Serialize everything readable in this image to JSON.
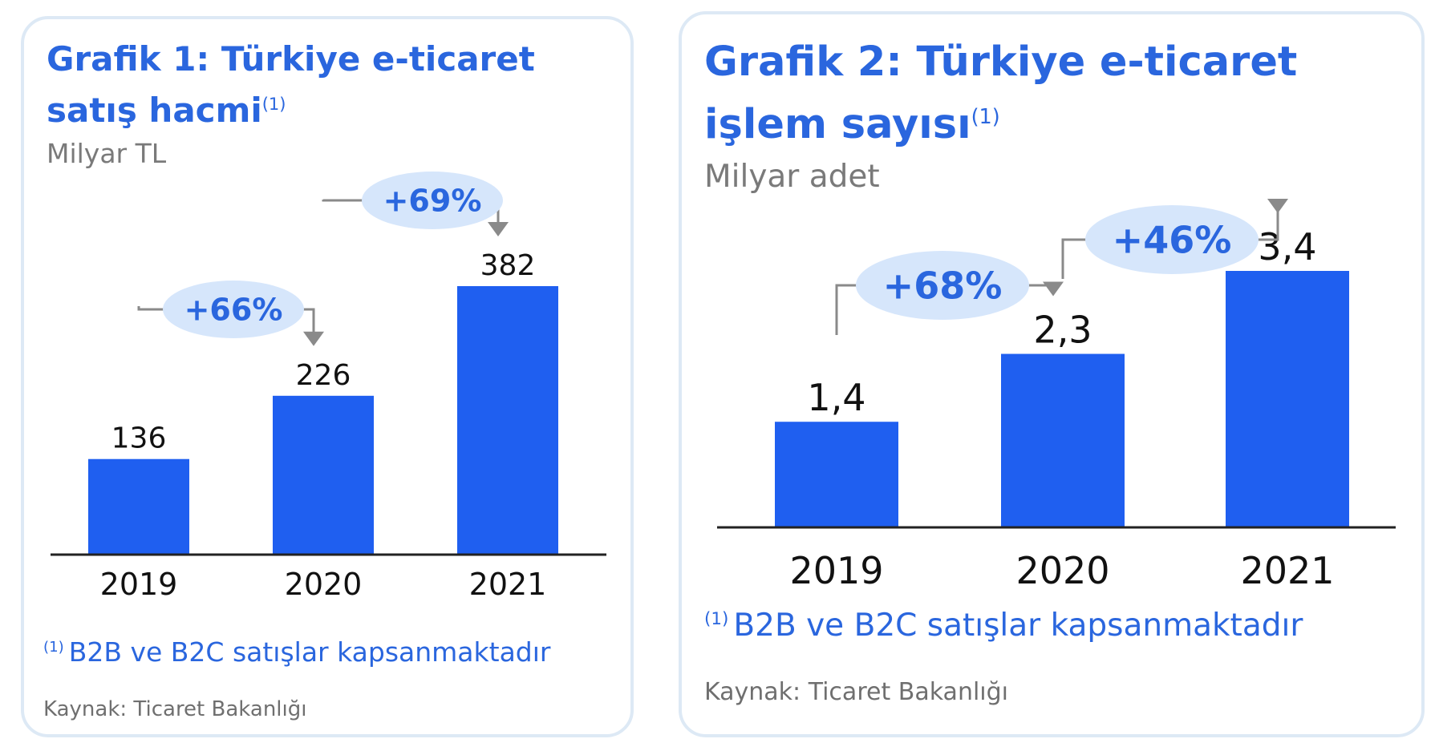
{
  "chart_data": [
    {
      "type": "bar",
      "title": "Grafik 1: Türkiye e-ticaret satış hacmi",
      "title_sup": "(1)",
      "unit": "Milyar TL",
      "categories": [
        "2019",
        "2020",
        "2021"
      ],
      "values": [
        136,
        226,
        382
      ],
      "value_labels": [
        "136",
        "226",
        "382"
      ],
      "growth": [
        {
          "from": "2019",
          "to": "2020",
          "label": "+66%"
        },
        {
          "from": "2020",
          "to": "2021",
          "label": "+69%"
        }
      ],
      "footnote_marker": "(1)",
      "footnote": "B2B ve B2C satışlar kapsanmaktadır",
      "source": "Kaynak: Ticaret Bakanlığı",
      "bar_color": "#1f5ff0",
      "bubble_color": "#d6e6fb",
      "text_color": "#2a66de"
    },
    {
      "type": "bar",
      "title": "Grafik 2: Türkiye e-ticaret işlem sayısı",
      "title_sup": "(1)",
      "unit": "Milyar adet",
      "categories": [
        "2019",
        "2020",
        "2021"
      ],
      "values": [
        1.4,
        2.3,
        3.4
      ],
      "value_labels": [
        "1,4",
        "2,3",
        "3,4"
      ],
      "growth": [
        {
          "from": "2019",
          "to": "2020",
          "label": "+68%"
        },
        {
          "from": "2020",
          "to": "2021",
          "label": "+46%"
        }
      ],
      "footnote_marker": "(1)",
      "footnote": "B2B ve B2C satışlar kapsanmaktadır",
      "source": "Kaynak: Ticaret Bakanlığı",
      "bar_color": "#1f5ff0",
      "bubble_color": "#d6e6fb",
      "text_color": "#2a66de"
    }
  ]
}
